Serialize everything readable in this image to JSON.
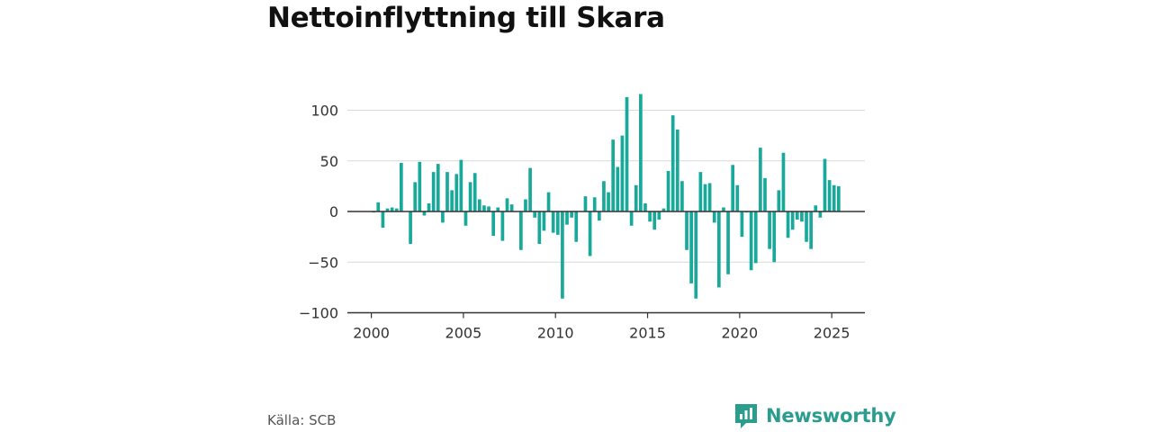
{
  "title": "Nettoinflyttning till Skara",
  "source": "Källa: SCB",
  "brand": "Newsworthy",
  "colors": {
    "bar": "#18a99b",
    "grid": "#d9d9d9",
    "zero": "#333333",
    "brand": "#2a9d8f"
  },
  "chart_data": {
    "type": "bar",
    "title": "Nettoinflyttning till Skara",
    "xlabel": "",
    "ylabel": "",
    "ylim": [
      -100,
      100
    ],
    "yticks": [
      100,
      50,
      0,
      -50,
      -100
    ],
    "xlim": [
      1998.7,
      2026.8
    ],
    "xticks": [
      2000,
      2005,
      2010,
      2015,
      2020,
      2025
    ],
    "grid": true,
    "series": [
      {
        "x": [
          2000.125,
          2000.375,
          2000.625,
          2000.875,
          2001.125,
          2001.375,
          2001.625,
          2001.875,
          2002.125,
          2002.375,
          2002.625,
          2002.875,
          2003.125,
          2003.375,
          2003.625,
          2003.875,
          2004.125,
          2004.375,
          2004.625,
          2004.875,
          2005.125,
          2005.375,
          2005.625,
          2005.875,
          2006.125,
          2006.375,
          2006.625,
          2006.875,
          2007.125,
          2007.375,
          2007.625,
          2007.875,
          2008.125,
          2008.375,
          2008.625,
          2008.875,
          2009.125,
          2009.375,
          2009.625,
          2009.875,
          2010.125,
          2010.375,
          2010.625,
          2010.875,
          2011.125,
          2011.375,
          2011.625,
          2011.875,
          2012.125,
          2012.375,
          2012.625,
          2012.875,
          2013.125,
          2013.375,
          2013.625,
          2013.875,
          2014.125,
          2014.375,
          2014.625,
          2014.875,
          2015.125,
          2015.375,
          2015.625,
          2015.875,
          2016.125,
          2016.375,
          2016.625,
          2016.875,
          2017.125,
          2017.375,
          2017.625,
          2017.875,
          2018.125,
          2018.375,
          2018.625,
          2018.875,
          2019.125,
          2019.375,
          2019.625,
          2019.875,
          2020.125,
          2020.375,
          2020.625,
          2020.875,
          2021.125,
          2021.375,
          2021.625,
          2021.875,
          2022.125,
          2022.375,
          2022.625,
          2022.875,
          2023.125,
          2023.375,
          2023.625,
          2023.875,
          2024.125,
          2024.375,
          2024.625,
          2024.875,
          2025.125,
          2025.375
        ],
        "values": [
          -1,
          9,
          -16,
          3,
          4,
          3,
          48,
          0,
          -32,
          29,
          49,
          -4,
          8,
          39,
          47,
          -11,
          39,
          21,
          37,
          51,
          -14,
          29,
          38,
          12,
          6,
          5,
          -24,
          4,
          -29,
          13,
          7,
          0,
          -38,
          12,
          43,
          -6,
          -32,
          -19,
          19,
          -21,
          -23,
          -86,
          -13,
          -6,
          -30,
          0,
          15,
          -44,
          14,
          -9,
          30,
          19,
          71,
          44,
          75,
          113,
          -14,
          26,
          116,
          8,
          -10,
          -18,
          -8,
          3,
          40,
          95,
          81,
          30,
          -38,
          -71,
          -86,
          39,
          27,
          28,
          -11,
          -75,
          4,
          -62,
          46,
          26,
          -25,
          -1,
          -58,
          -51,
          63,
          33,
          -37,
          -50,
          21,
          58,
          -26,
          -18,
          -8,
          -10,
          -30,
          -37,
          6,
          -6,
          52,
          31,
          26,
          25
        ]
      }
    ]
  }
}
